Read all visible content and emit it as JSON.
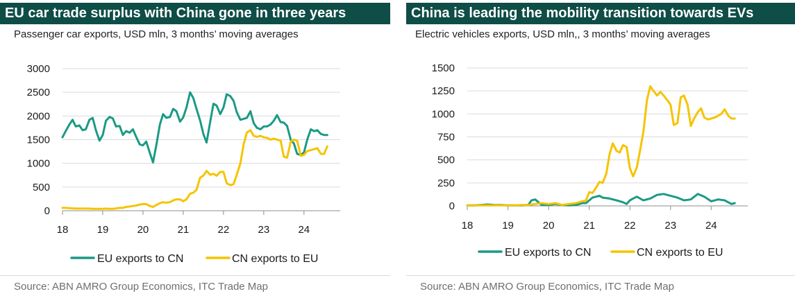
{
  "colors": {
    "eu": "#1a9a85",
    "cn": "#f5c400",
    "title_bg": "#0f4d47",
    "grid": "#d9d9d9"
  },
  "panels": [
    {
      "title": "EU car trade surplus with China gone in three years",
      "subtitle": "Passenger car exports, USD mln, 3 months’ moving averages",
      "source": "Source: ABN AMRO Group Economics, ITC Trade Map"
    },
    {
      "title": "China is leading the mobility transition towards EVs",
      "subtitle": "Electric vehicles exports, USD mln,, 3 months’ moving averages",
      "source": "Source: ABN AMRO Group Economics, ITC Trade Map"
    }
  ],
  "chart_data": [
    {
      "type": "line",
      "title": "EU car trade surplus with China gone in three years",
      "subtitle": "Passenger car exports, USD mln, 3 months’ moving averages",
      "x_ticks": [
        "18",
        "19",
        "20",
        "21",
        "22",
        "23",
        "24"
      ],
      "y_ticks": [
        "0",
        "500",
        "1000",
        "1500",
        "2000",
        "2500",
        "3000"
      ],
      "ylim": [
        0,
        3000
      ],
      "xlim": [
        2018.0,
        2024.9
      ],
      "grid": true,
      "legend_position": "bottom",
      "series": [
        {
          "name": "EU exports to CN",
          "color": "#1a9a85",
          "x": [
            2018.0,
            2018.08,
            2018.17,
            2018.25,
            2018.33,
            2018.42,
            2018.5,
            2018.58,
            2018.67,
            2018.75,
            2018.83,
            2018.92,
            2019.0,
            2019.08,
            2019.17,
            2019.25,
            2019.33,
            2019.42,
            2019.5,
            2019.58,
            2019.67,
            2019.75,
            2019.83,
            2019.92,
            2020.0,
            2020.08,
            2020.17,
            2020.25,
            2020.33,
            2020.42,
            2020.5,
            2020.58,
            2020.67,
            2020.75,
            2020.83,
            2020.92,
            2021.0,
            2021.08,
            2021.17,
            2021.25,
            2021.33,
            2021.42,
            2021.5,
            2021.58,
            2021.67,
            2021.75,
            2021.83,
            2021.92,
            2022.0,
            2022.08,
            2022.17,
            2022.25,
            2022.33,
            2022.42,
            2022.5,
            2022.58,
            2022.67,
            2022.75,
            2022.83,
            2022.92,
            2023.0,
            2023.08,
            2023.17,
            2023.25,
            2023.33,
            2023.42,
            2023.5,
            2023.58,
            2023.67,
            2023.75,
            2023.83,
            2023.92,
            2024.0,
            2024.08,
            2024.17,
            2024.25,
            2024.33,
            2024.42,
            2024.5,
            2024.58
          ],
          "values": [
            1550,
            1680,
            1820,
            1920,
            1780,
            1800,
            1700,
            1720,
            1920,
            1960,
            1700,
            1480,
            1600,
            1900,
            1980,
            1950,
            1780,
            1790,
            1600,
            1680,
            1650,
            1720,
            1560,
            1400,
            1380,
            1460,
            1220,
            1020,
            1380,
            1820,
            2040,
            1960,
            1980,
            2150,
            2100,
            1880,
            1970,
            2180,
            2500,
            2380,
            2150,
            1900,
            1620,
            1440,
            1880,
            2260,
            2220,
            2040,
            2180,
            2460,
            2420,
            2320,
            2080,
            1920,
            1940,
            1960,
            2100,
            1850,
            1750,
            1720,
            1780,
            1780,
            1820,
            1900,
            2020,
            1870,
            1860,
            1790,
            1500,
            1420,
            1200,
            1180,
            1230,
            1500,
            1720,
            1680,
            1700,
            1620,
            1600,
            1600
          ]
        },
        {
          "name": "CN exports to EU",
          "color": "#f5c400",
          "x": [
            2018.0,
            2018.08,
            2018.17,
            2018.25,
            2018.33,
            2018.42,
            2018.5,
            2018.58,
            2018.67,
            2018.75,
            2018.83,
            2018.92,
            2019.0,
            2019.08,
            2019.17,
            2019.25,
            2019.33,
            2019.42,
            2019.5,
            2019.58,
            2019.67,
            2019.75,
            2019.83,
            2019.92,
            2020.0,
            2020.08,
            2020.17,
            2020.25,
            2020.33,
            2020.42,
            2020.5,
            2020.58,
            2020.67,
            2020.75,
            2020.83,
            2020.92,
            2021.0,
            2021.08,
            2021.17,
            2021.25,
            2021.33,
            2021.42,
            2021.5,
            2021.58,
            2021.67,
            2021.75,
            2021.83,
            2021.92,
            2022.0,
            2022.08,
            2022.17,
            2022.25,
            2022.33,
            2022.42,
            2022.5,
            2022.58,
            2022.67,
            2022.75,
            2022.83,
            2022.92,
            2023.0,
            2023.08,
            2023.17,
            2023.25,
            2023.33,
            2023.42,
            2023.5,
            2023.58,
            2023.67,
            2023.75,
            2023.83,
            2023.92,
            2024.0,
            2024.08,
            2024.17,
            2024.25,
            2024.33,
            2024.42,
            2024.5,
            2024.58
          ],
          "values": [
            60,
            60,
            55,
            50,
            45,
            45,
            45,
            45,
            45,
            40,
            40,
            40,
            40,
            45,
            40,
            40,
            50,
            60,
            60,
            80,
            90,
            100,
            110,
            130,
            140,
            140,
            100,
            80,
            120,
            160,
            180,
            170,
            180,
            220,
            240,
            240,
            200,
            240,
            360,
            380,
            440,
            700,
            740,
            840,
            760,
            780,
            740,
            820,
            820,
            580,
            540,
            560,
            760,
            1000,
            1400,
            1650,
            1700,
            1580,
            1560,
            1580,
            1550,
            1540,
            1500,
            1520,
            1500,
            1480,
            1140,
            1120,
            1460,
            1500,
            1480,
            1160,
            1180,
            1260,
            1280,
            1300,
            1320,
            1200,
            1200,
            1360
          ]
        }
      ]
    },
    {
      "type": "line",
      "title": "China is leading the mobility transition towards EVs",
      "subtitle": "Electric vehicles exports, USD mln,, 3 months’ moving averages",
      "x_ticks": [
        "18",
        "19",
        "20",
        "21",
        "22",
        "23",
        "24"
      ],
      "y_ticks": [
        "0",
        "250",
        "500",
        "750",
        "1000",
        "1250",
        "1500"
      ],
      "ylim": [
        0,
        1500
      ],
      "xlim": [
        2018.0,
        2024.9
      ],
      "grid": true,
      "legend_position": "bottom",
      "series": [
        {
          "name": "EU exports to CN",
          "color": "#1a9a85",
          "x": [
            2018.0,
            2018.17,
            2018.33,
            2018.5,
            2018.67,
            2018.83,
            2019.0,
            2019.17,
            2019.33,
            2019.5,
            2019.58,
            2019.67,
            2019.75,
            2019.83,
            2020.0,
            2020.17,
            2020.33,
            2020.5,
            2020.67,
            2020.83,
            2020.92,
            2021.0,
            2021.08,
            2021.17,
            2021.25,
            2021.33,
            2021.5,
            2021.67,
            2021.83,
            2021.92,
            2022.0,
            2022.08,
            2022.17,
            2022.33,
            2022.5,
            2022.67,
            2022.83,
            2023.0,
            2023.17,
            2023.33,
            2023.5,
            2023.67,
            2023.83,
            2024.0,
            2024.17,
            2024.33,
            2024.5,
            2024.58
          ],
          "values": [
            5,
            5,
            10,
            15,
            10,
            10,
            5,
            5,
            5,
            10,
            60,
            70,
            40,
            10,
            10,
            20,
            10,
            5,
            10,
            30,
            30,
            60,
            90,
            100,
            110,
            90,
            80,
            60,
            40,
            20,
            60,
            80,
            100,
            60,
            80,
            120,
            130,
            110,
            90,
            60,
            70,
            130,
            100,
            50,
            70,
            60,
            20,
            30
          ]
        },
        {
          "name": "CN exports to EU",
          "color": "#f5c400",
          "x": [
            2018.0,
            2018.17,
            2018.33,
            2018.5,
            2018.67,
            2018.83,
            2019.0,
            2019.17,
            2019.33,
            2019.5,
            2019.67,
            2019.83,
            2020.0,
            2020.17,
            2020.33,
            2020.5,
            2020.67,
            2020.83,
            2020.92,
            2021.0,
            2021.08,
            2021.17,
            2021.25,
            2021.33,
            2021.42,
            2021.5,
            2021.58,
            2021.67,
            2021.75,
            2021.83,
            2021.92,
            2022.0,
            2022.08,
            2022.17,
            2022.25,
            2022.33,
            2022.42,
            2022.5,
            2022.58,
            2022.67,
            2022.75,
            2022.83,
            2022.92,
            2023.0,
            2023.08,
            2023.17,
            2023.25,
            2023.33,
            2023.42,
            2023.5,
            2023.58,
            2023.67,
            2023.75,
            2023.83,
            2023.92,
            2024.0,
            2024.08,
            2024.17,
            2024.25,
            2024.33,
            2024.42,
            2024.5,
            2024.58
          ],
          "values": [
            5,
            5,
            5,
            5,
            5,
            5,
            5,
            5,
            10,
            10,
            20,
            30,
            20,
            30,
            10,
            20,
            30,
            50,
            60,
            150,
            140,
            200,
            260,
            250,
            350,
            560,
            680,
            600,
            580,
            660,
            640,
            410,
            320,
            420,
            600,
            800,
            1150,
            1300,
            1250,
            1200,
            1240,
            1200,
            1150,
            1100,
            880,
            900,
            1180,
            1200,
            1100,
            870,
            950,
            1020,
            1060,
            960,
            940,
            950,
            960,
            980,
            1000,
            1050,
            980,
            950,
            950
          ]
        }
      ]
    }
  ]
}
